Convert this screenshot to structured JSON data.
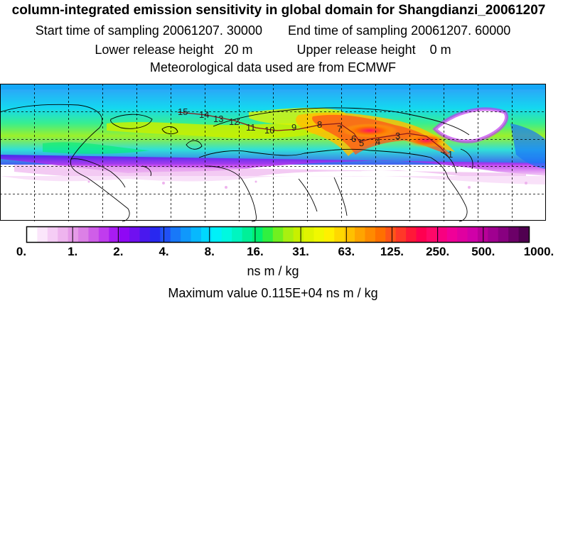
{
  "title": "column-integrated emission sensitivity in global domain for Shangdianzi_20061207",
  "sampling": {
    "start": "Start time of sampling 20061207. 30000",
    "end": "End time of sampling 20061207. 60000"
  },
  "release": {
    "lower": "Lower release height   20 m",
    "upper": "Upper release height    0 m"
  },
  "met_source": "Meteorological data used are from ECMWF",
  "legend": {
    "tick_labels": [
      "0.",
      "1.",
      "2.",
      "4.",
      "8.",
      "16.",
      "31.",
      "63.",
      "125.",
      "250.",
      "500.",
      "1000."
    ],
    "colors": [
      "#ffffff",
      "#fbe6fb",
      "#f5cdf5",
      "#eeb4ee",
      "#e59ae8",
      "#dc80e6",
      "#cf5ee8",
      "#c03cee",
      "#a81cf2",
      "#8f08f5",
      "#7010f0",
      "#4a18ee",
      "#2828f0",
      "#2050f5",
      "#1878f8",
      "#1098fb",
      "#08b8fd",
      "#00d8ff",
      "#00f0f8",
      "#00f8e0",
      "#00f5c0",
      "#00f098",
      "#00ee70",
      "#30f040",
      "#70f020",
      "#a8f010",
      "#c8f000",
      "#e0f400",
      "#f0f800",
      "#fff000",
      "#ffd800",
      "#ffc000",
      "#ffa400",
      "#ff8a00",
      "#ff7000",
      "#ff5418",
      "#ff3828",
      "#ff1838",
      "#ff0050",
      "#ff0868",
      "#f80080",
      "#f00098",
      "#e000a0",
      "#d000a8",
      "#b80098",
      "#a00090",
      "#880080",
      "#6c0068",
      "#500050"
    ],
    "units": "ns m / kg"
  },
  "max_value": "Maximum value  0.115E+04 ns m / kg",
  "trajectory_labels": [
    "1",
    "3",
    "4",
    "5",
    "6",
    "7",
    "8",
    "9",
    "10",
    "11",
    "12",
    "13",
    "14",
    "15"
  ]
}
